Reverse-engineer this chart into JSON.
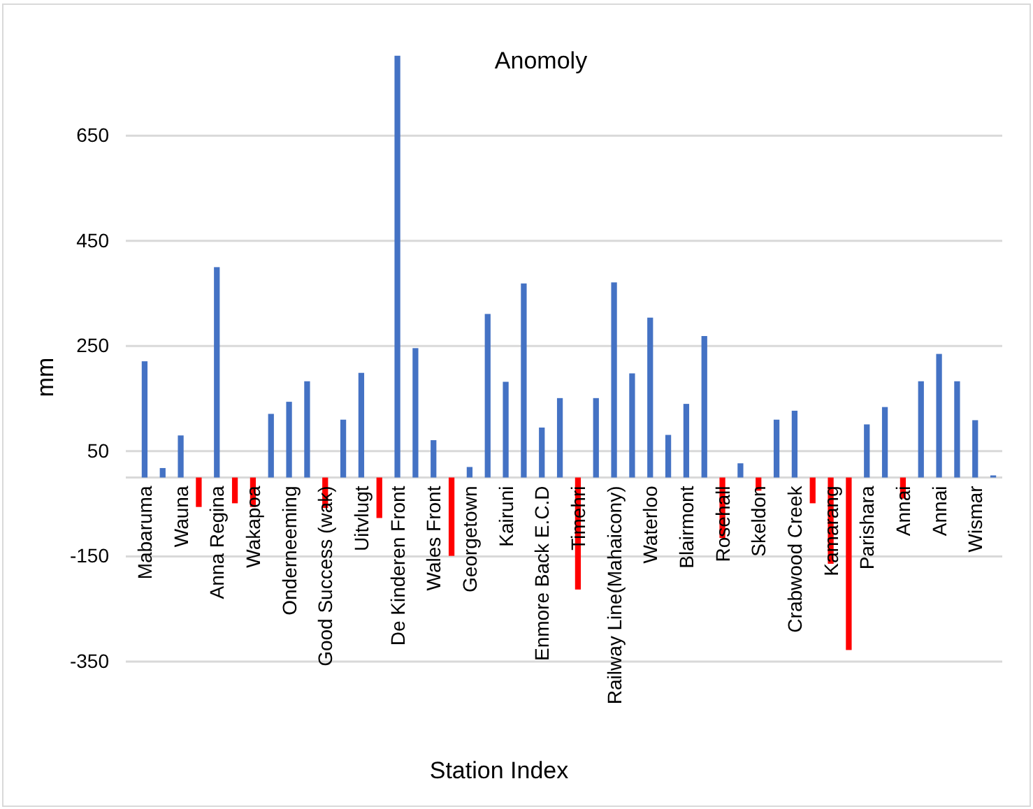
{
  "chart_data": {
    "type": "bar",
    "title": "Anomoly",
    "xlabel": "Station Index",
    "ylabel": "mm",
    "categories": [
      "Mabaruma",
      null,
      "Wauna",
      null,
      "Anna Regina",
      null,
      "Wakapoa",
      null,
      "Onderneeming",
      null,
      "Good Success (wak)",
      null,
      "Uitvlugt",
      null,
      "De Kinderen Front",
      null,
      "Wales Front",
      null,
      "Georgetown",
      null,
      "Kairuni",
      null,
      "Enmore Back  E.C.D",
      null,
      "Timehri",
      null,
      "Railway Line(Mahaicony)",
      null,
      "Waterloo",
      null,
      "Blairmont",
      null,
      "Rosehall",
      null,
      "Skeldon",
      null,
      "Crabwood Creek",
      null,
      "Kamarang",
      null,
      "Parishara",
      null,
      "Annai",
      null,
      "Annai",
      null,
      "Wismar",
      null
    ],
    "values": [
      221,
      18,
      80,
      -56,
      400,
      -49,
      -56,
      121,
      144,
      183,
      -58,
      110,
      199,
      -77,
      802,
      246,
      71,
      -149,
      20,
      311,
      182,
      369,
      95,
      151,
      -213,
      151,
      371,
      198,
      304,
      81,
      140,
      269,
      -115,
      27,
      -25,
      110,
      127,
      -49,
      -164,
      -328,
      101,
      134,
      -40,
      183,
      235,
      183,
      109,
      4
    ],
    "colors": [
      "#4472c4",
      "#4472c4",
      "#4472c4",
      "#ff0000",
      "#4472c4",
      "#ff0000",
      "#ff0000",
      "#4472c4",
      "#4472c4",
      "#4472c4",
      "#ff0000",
      "#4472c4",
      "#4472c4",
      "#ff0000",
      "#4472c4",
      "#4472c4",
      "#4472c4",
      "#ff0000",
      "#4472c4",
      "#4472c4",
      "#4472c4",
      "#4472c4",
      "#4472c4",
      "#4472c4",
      "#ff0000",
      "#4472c4",
      "#4472c4",
      "#4472c4",
      "#4472c4",
      "#4472c4",
      "#4472c4",
      "#4472c4",
      "#ff0000",
      "#4472c4",
      "#ff0000",
      "#4472c4",
      "#4472c4",
      "#ff0000",
      "#ff0000",
      "#ff0000",
      "#4472c4",
      "#4472c4",
      "#ff0000",
      "#4472c4",
      "#4472c4",
      "#4472c4",
      "#4472c4",
      "#4472c4"
    ],
    "ylim": [
      -625,
      900
    ],
    "yticks": [
      -350,
      -150,
      50,
      250,
      450,
      650
    ],
    "grid": "y"
  }
}
